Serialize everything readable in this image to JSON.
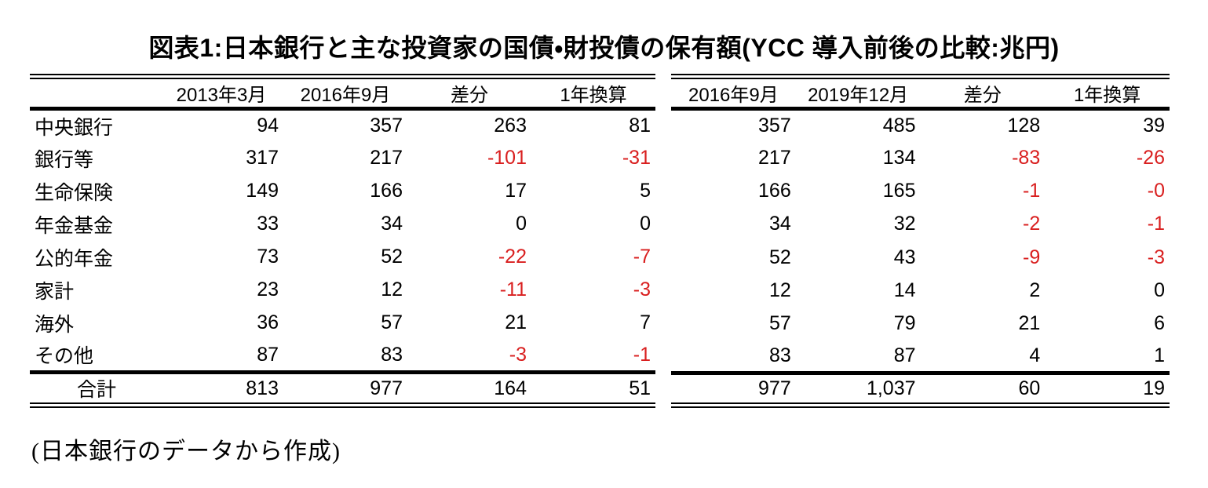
{
  "title": "図表1:日本銀行と主な投資家の国債・財投債の保有額(YCC 導入前後の比較:兆円)",
  "source_note": "(日本銀行のデータから作成)",
  "colors": {
    "negative_value": "#d91f1f",
    "text": "#000000",
    "background": "#ffffff"
  },
  "table": {
    "row_label_header": "",
    "left_headers": [
      "2013年3月",
      "2016年9月",
      "差分",
      "1年換算"
    ],
    "right_headers": [
      "2016年9月",
      "2019年12月",
      "差分",
      "1年換算"
    ],
    "rows": [
      {
        "label": "中央銀行",
        "left": [
          "94",
          "357",
          "263",
          "81"
        ],
        "right": [
          "357",
          "485",
          "128",
          "39"
        ]
      },
      {
        "label": "銀行等",
        "left": [
          "317",
          "217",
          "-101",
          "-31"
        ],
        "right": [
          "217",
          "134",
          "-83",
          "-26"
        ]
      },
      {
        "label": "生命保険",
        "left": [
          "149",
          "166",
          "17",
          "5"
        ],
        "right": [
          "166",
          "165",
          "-1",
          "-0"
        ]
      },
      {
        "label": "年金基金",
        "left": [
          "33",
          "34",
          "0",
          "0"
        ],
        "right": [
          "34",
          "32",
          "-2",
          "-1"
        ]
      },
      {
        "label": "公的年金",
        "left": [
          "73",
          "52",
          "-22",
          "-7"
        ],
        "right": [
          "52",
          "43",
          "-9",
          "-3"
        ]
      },
      {
        "label": "家計",
        "left": [
          "23",
          "12",
          "-11",
          "-3"
        ],
        "right": [
          "12",
          "14",
          "2",
          "0"
        ]
      },
      {
        "label": "海外",
        "left": [
          "36",
          "57",
          "21",
          "7"
        ],
        "right": [
          "57",
          "79",
          "21",
          "6"
        ]
      },
      {
        "label": "その他",
        "left": [
          "87",
          "83",
          "-3",
          "-1"
        ],
        "right": [
          "83",
          "87",
          "4",
          "1"
        ]
      }
    ],
    "total_label": "合計",
    "total": {
      "left": [
        "813",
        "977",
        "164",
        "51"
      ],
      "right": [
        "977",
        "1,037",
        "60",
        "19"
      ]
    }
  }
}
